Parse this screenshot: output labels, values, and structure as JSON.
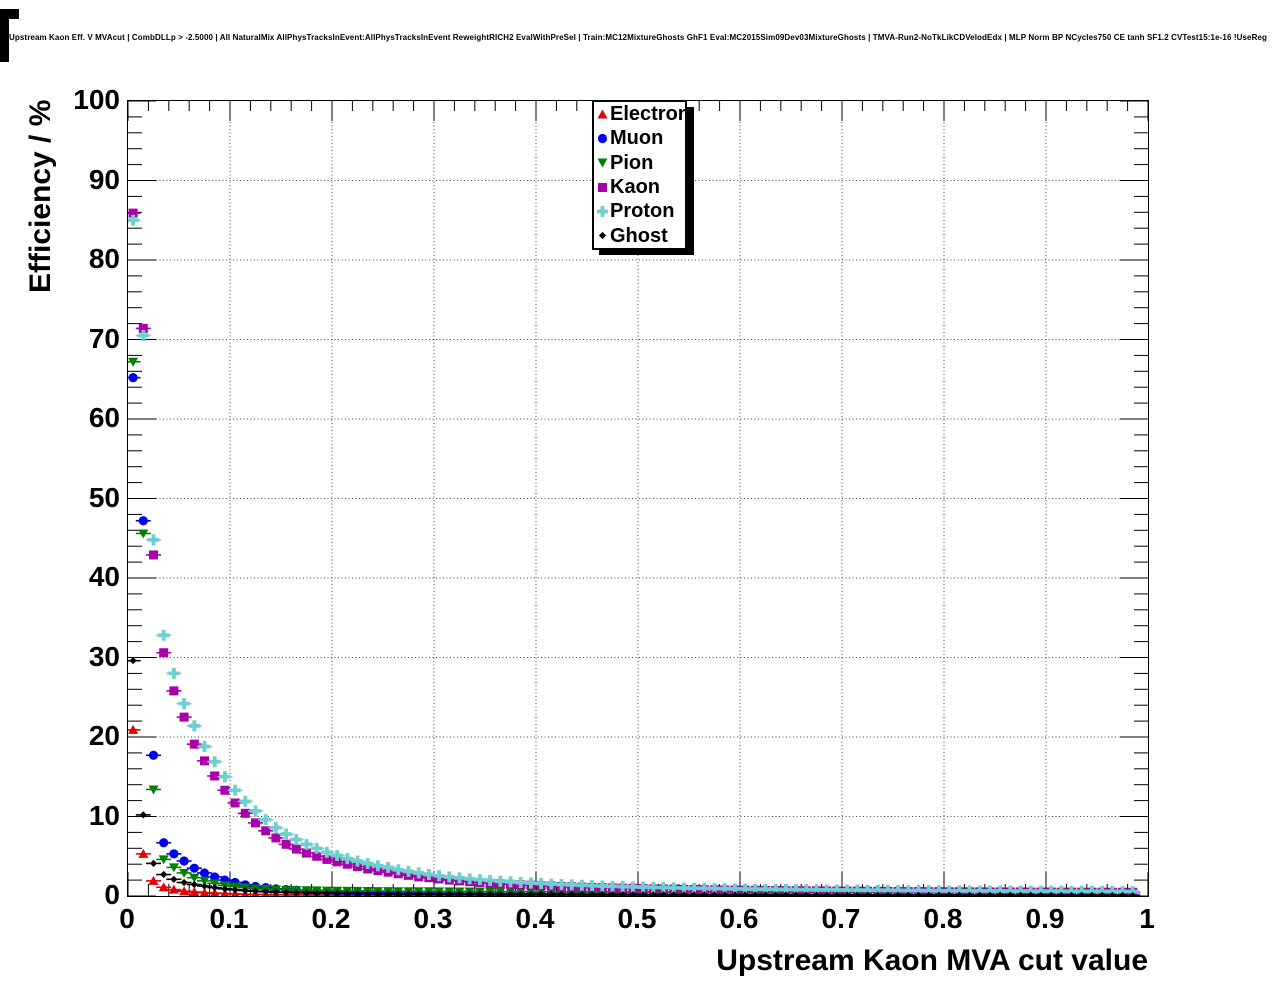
{
  "canvas": {
    "title": "Upstream Kaon Eff. V MVAcut | CombDLLp > -2.5000 | All NaturalMix AllPhysTracksInEvent:AllPhysTracksInEvent ReweightRICH2 EvalWithPreSel | Train:MC12MixtureGhosts GhF1 Eval:MC2015Sim09Dev03MixtureGhosts | TMVA-Run2-NoTkLikCDVelodEdx | MLP Norm BP NCycles750 CE tanh SF1.2 CVTest15:1e-16 !UseReg"
  },
  "chart_data": {
    "type": "scatter",
    "title": "Upstream Kaon Eff. V MVAcut",
    "xlabel": "Upstream Kaon MVA cut value",
    "ylabel": "Efficiency / %",
    "xlim": [
      0,
      1
    ],
    "ylim": [
      0,
      100
    ],
    "grid": true,
    "x_tick_labels": [
      "0",
      "0.1",
      "0.2",
      "0.3",
      "0.4",
      "0.5",
      "0.6",
      "0.7",
      "0.8",
      "0.9",
      "1"
    ],
    "y_tick_labels": [
      "0",
      "10",
      "20",
      "30",
      "40",
      "50",
      "60",
      "70",
      "80",
      "90",
      "100"
    ],
    "x_minor_step": 0.02,
    "y_minor_step": 2,
    "legend_position": "top-center",
    "x": [
      0.005,
      0.015,
      0.025,
      0.035,
      0.045,
      0.055,
      0.065,
      0.075,
      0.085,
      0.095,
      0.105,
      0.115,
      0.125,
      0.135,
      0.145,
      0.155,
      0.165,
      0.175,
      0.185,
      0.195,
      0.205,
      0.215,
      0.225,
      0.235,
      0.245,
      0.255,
      0.265,
      0.275,
      0.285,
      0.295,
      0.305,
      0.315,
      0.325,
      0.335,
      0.345,
      0.355,
      0.365,
      0.375,
      0.385,
      0.395,
      0.405,
      0.415,
      0.425,
      0.435,
      0.445,
      0.455,
      0.465,
      0.475,
      0.485,
      0.495,
      0.505,
      0.515,
      0.525,
      0.535,
      0.545,
      0.555,
      0.565,
      0.575,
      0.585,
      0.595,
      0.605,
      0.615,
      0.625,
      0.635,
      0.645,
      0.655,
      0.665,
      0.675,
      0.685,
      0.695,
      0.705,
      0.715,
      0.725,
      0.735,
      0.745,
      0.755,
      0.765,
      0.775,
      0.785,
      0.795,
      0.805,
      0.815,
      0.825,
      0.835,
      0.845,
      0.855,
      0.865,
      0.875,
      0.885,
      0.895,
      0.905,
      0.915,
      0.925,
      0.935,
      0.945,
      0.955,
      0.965,
      0.975,
      0.985
    ],
    "series": [
      {
        "name": "Electron",
        "color": "#e60000",
        "marker": "triangle-up",
        "values": [
          20.9,
          5.3,
          1.9,
          1.1,
          0.8,
          0.6,
          0.5,
          0.42,
          0.36,
          0.3,
          0.26,
          0.22,
          0.2,
          0.18,
          0.16,
          0.15,
          0.14,
          0.13,
          0.12,
          0.11,
          0.1,
          0.1,
          0.09,
          0.09,
          0.08,
          0.08,
          0.07,
          0.07,
          0.07,
          0.06,
          0.06,
          0.06,
          0.06,
          0.05,
          0.05,
          0.05,
          0.05,
          0.05,
          0.05,
          0.05,
          0.04,
          0.04,
          0.04,
          0.04,
          0.04,
          0.04,
          0.04,
          0.04,
          0.04,
          0.04,
          0.04,
          0.04,
          0.03,
          0.03,
          0.03,
          0.03,
          0.03,
          0.03,
          0.03,
          0.03,
          0.03,
          0.03,
          0.03,
          0.03,
          0.03,
          0.03,
          0.03,
          0.03,
          0.03,
          0.03,
          0.03,
          0.03,
          0.03,
          0.02,
          0.02,
          0.02,
          0.02,
          0.02,
          0.02,
          0.02,
          0.02,
          0.02,
          0.02,
          0.02,
          0.02,
          0.02,
          0.02,
          0.02,
          0.02,
          0.02,
          0.02,
          0.02,
          0.02,
          0.02,
          0.02,
          0.02,
          0.02,
          0.02,
          0.02
        ]
      },
      {
        "name": "Muon",
        "color": "#0000ee",
        "marker": "circle",
        "values": [
          65.2,
          47.2,
          17.7,
          6.7,
          5.3,
          4.4,
          3.5,
          2.9,
          2.4,
          2.0,
          1.7,
          1.4,
          1.2,
          1.05,
          0.9,
          0.8,
          0.72,
          0.65,
          0.6,
          0.55,
          0.5,
          0.47,
          0.44,
          0.42,
          0.4,
          0.38,
          0.36,
          0.35,
          0.34,
          0.33,
          0.32,
          0.31,
          0.3,
          0.29,
          0.28,
          0.28,
          0.27,
          0.27,
          0.26,
          0.26,
          0.25,
          0.25,
          0.24,
          0.24,
          0.23,
          0.23,
          0.22,
          0.22,
          0.22,
          0.21,
          0.21,
          0.21,
          0.2,
          0.2,
          0.2,
          0.2,
          0.19,
          0.19,
          0.19,
          0.19,
          0.18,
          0.18,
          0.18,
          0.18,
          0.17,
          0.17,
          0.17,
          0.17,
          0.16,
          0.16,
          0.16,
          0.16,
          0.16,
          0.15,
          0.15,
          0.15,
          0.15,
          0.15,
          0.14,
          0.14,
          0.14,
          0.14,
          0.14,
          0.14,
          0.13,
          0.13,
          0.13,
          0.13,
          0.13,
          0.13,
          0.13,
          0.12,
          0.12,
          0.12,
          0.12,
          0.12,
          0.12,
          0.12,
          0.12
        ]
      },
      {
        "name": "Pion",
        "color": "#008000",
        "marker": "triangle-down",
        "values": [
          67.2,
          45.6,
          13.4,
          4.6,
          3.6,
          2.9,
          2.3,
          1.9,
          1.6,
          1.35,
          1.2,
          1.05,
          0.95,
          0.88,
          0.82,
          0.78,
          0.75,
          0.72,
          0.7,
          0.68,
          0.66,
          0.65,
          0.64,
          0.63,
          0.62,
          0.61,
          0.6,
          0.6,
          0.59,
          0.59,
          0.58,
          0.58,
          0.57,
          0.57,
          0.56,
          0.56,
          0.55,
          0.55,
          0.55,
          0.54,
          0.54,
          0.54,
          0.53,
          0.53,
          0.53,
          0.52,
          0.52,
          0.52,
          0.52,
          0.51,
          0.51,
          0.51,
          0.51,
          0.5,
          0.5,
          0.5,
          0.5,
          0.5,
          0.49,
          0.49,
          0.49,
          0.49,
          0.49,
          0.48,
          0.48,
          0.48,
          0.48,
          0.48,
          0.47,
          0.47,
          0.47,
          0.47,
          0.47,
          0.46,
          0.46,
          0.46,
          0.46,
          0.46,
          0.46,
          0.45,
          0.45,
          0.45,
          0.45,
          0.45,
          0.45,
          0.44,
          0.44,
          0.44,
          0.44,
          0.44,
          0.44,
          0.44,
          0.43,
          0.43,
          0.43,
          0.43,
          0.43,
          0.43,
          0.43
        ]
      },
      {
        "name": "Kaon",
        "color": "#aa00aa",
        "marker": "square",
        "values": [
          85.9,
          71.4,
          42.9,
          30.6,
          25.8,
          22.5,
          19.1,
          17.0,
          15.1,
          13.3,
          11.7,
          10.4,
          9.2,
          8.2,
          7.3,
          6.5,
          5.9,
          5.4,
          5.0,
          4.6,
          4.3,
          4.0,
          3.7,
          3.4,
          3.2,
          3.0,
          2.8,
          2.6,
          2.4,
          2.3,
          2.15,
          2.0,
          1.9,
          1.8,
          1.7,
          1.62,
          1.55,
          1.48,
          1.42,
          1.36,
          1.3,
          1.25,
          1.2,
          1.16,
          1.12,
          1.08,
          1.05,
          1.02,
          0.99,
          0.96,
          0.93,
          0.9,
          0.88,
          0.86,
          0.84,
          0.82,
          0.8,
          0.78,
          0.76,
          0.75,
          0.73,
          0.72,
          0.7,
          0.69,
          0.68,
          0.67,
          0.66,
          0.65,
          0.64,
          0.63,
          0.62,
          0.61,
          0.6,
          0.59,
          0.58,
          0.57,
          0.56,
          0.56,
          0.55,
          0.55,
          0.54,
          0.54,
          0.53,
          0.53,
          0.52,
          0.52,
          0.51,
          0.51,
          0.5,
          0.5,
          0.5,
          0.49,
          0.49,
          0.48,
          0.48,
          0.48,
          0.47,
          0.47,
          0.47
        ]
      },
      {
        "name": "Proton",
        "color": "#6fcece",
        "marker": "plus",
        "values": [
          85.0,
          70.5,
          44.8,
          32.8,
          28.0,
          24.2,
          21.4,
          18.8,
          16.9,
          15.0,
          13.3,
          11.9,
          10.7,
          9.6,
          8.6,
          7.8,
          7.1,
          6.5,
          6.0,
          5.5,
          5.1,
          4.7,
          4.4,
          4.1,
          3.8,
          3.6,
          3.3,
          3.1,
          2.9,
          2.7,
          2.55,
          2.4,
          2.28,
          2.16,
          2.05,
          1.95,
          1.86,
          1.78,
          1.7,
          1.63,
          1.57,
          1.51,
          1.45,
          1.4,
          1.35,
          1.3,
          1.26,
          1.22,
          1.18,
          1.15,
          1.12,
          1.09,
          1.06,
          1.03,
          1.0,
          0.98,
          0.96,
          0.94,
          0.92,
          0.9,
          0.88,
          0.86,
          0.85,
          0.83,
          0.82,
          0.8,
          0.79,
          0.78,
          0.77,
          0.76,
          0.75,
          0.74,
          0.73,
          0.72,
          0.71,
          0.7,
          0.69,
          0.68,
          0.67,
          0.66,
          0.65,
          0.65,
          0.64,
          0.64,
          0.63,
          0.63,
          0.62,
          0.62,
          0.61,
          0.61,
          0.6,
          0.6,
          0.59,
          0.59,
          0.58,
          0.58,
          0.57,
          0.57,
          0.56
        ]
      },
      {
        "name": "Ghost",
        "color": "#000000",
        "marker": "diamond",
        "values": [
          29.6,
          10.2,
          4.1,
          2.7,
          2.1,
          1.7,
          1.45,
          1.25,
          1.05,
          0.9,
          0.78,
          0.68,
          0.6,
          0.54,
          0.49,
          0.45,
          0.42,
          0.39,
          0.37,
          0.35,
          0.33,
          0.31,
          0.3,
          0.29,
          0.28,
          0.27,
          0.26,
          0.25,
          0.24,
          0.24,
          0.23,
          0.23,
          0.22,
          0.22,
          0.21,
          0.21,
          0.2,
          0.2,
          0.19,
          0.19,
          0.19,
          0.18,
          0.18,
          0.18,
          0.17,
          0.17,
          0.17,
          0.16,
          0.16,
          0.16,
          0.16,
          0.15,
          0.15,
          0.15,
          0.15,
          0.14,
          0.14,
          0.14,
          0.14,
          0.13,
          0.13,
          0.13,
          0.13,
          0.13,
          0.12,
          0.12,
          0.12,
          0.12,
          0.12,
          0.11,
          0.11,
          0.11,
          0.11,
          0.11,
          0.11,
          0.1,
          0.1,
          0.1,
          0.1,
          0.1,
          0.1,
          0.1,
          0.09,
          0.09,
          0.09,
          0.09,
          0.09,
          0.09,
          0.09,
          0.08,
          0.08,
          0.08,
          0.08,
          0.08,
          0.08,
          0.08,
          0.07,
          0.07,
          0.05
        ]
      }
    ]
  }
}
